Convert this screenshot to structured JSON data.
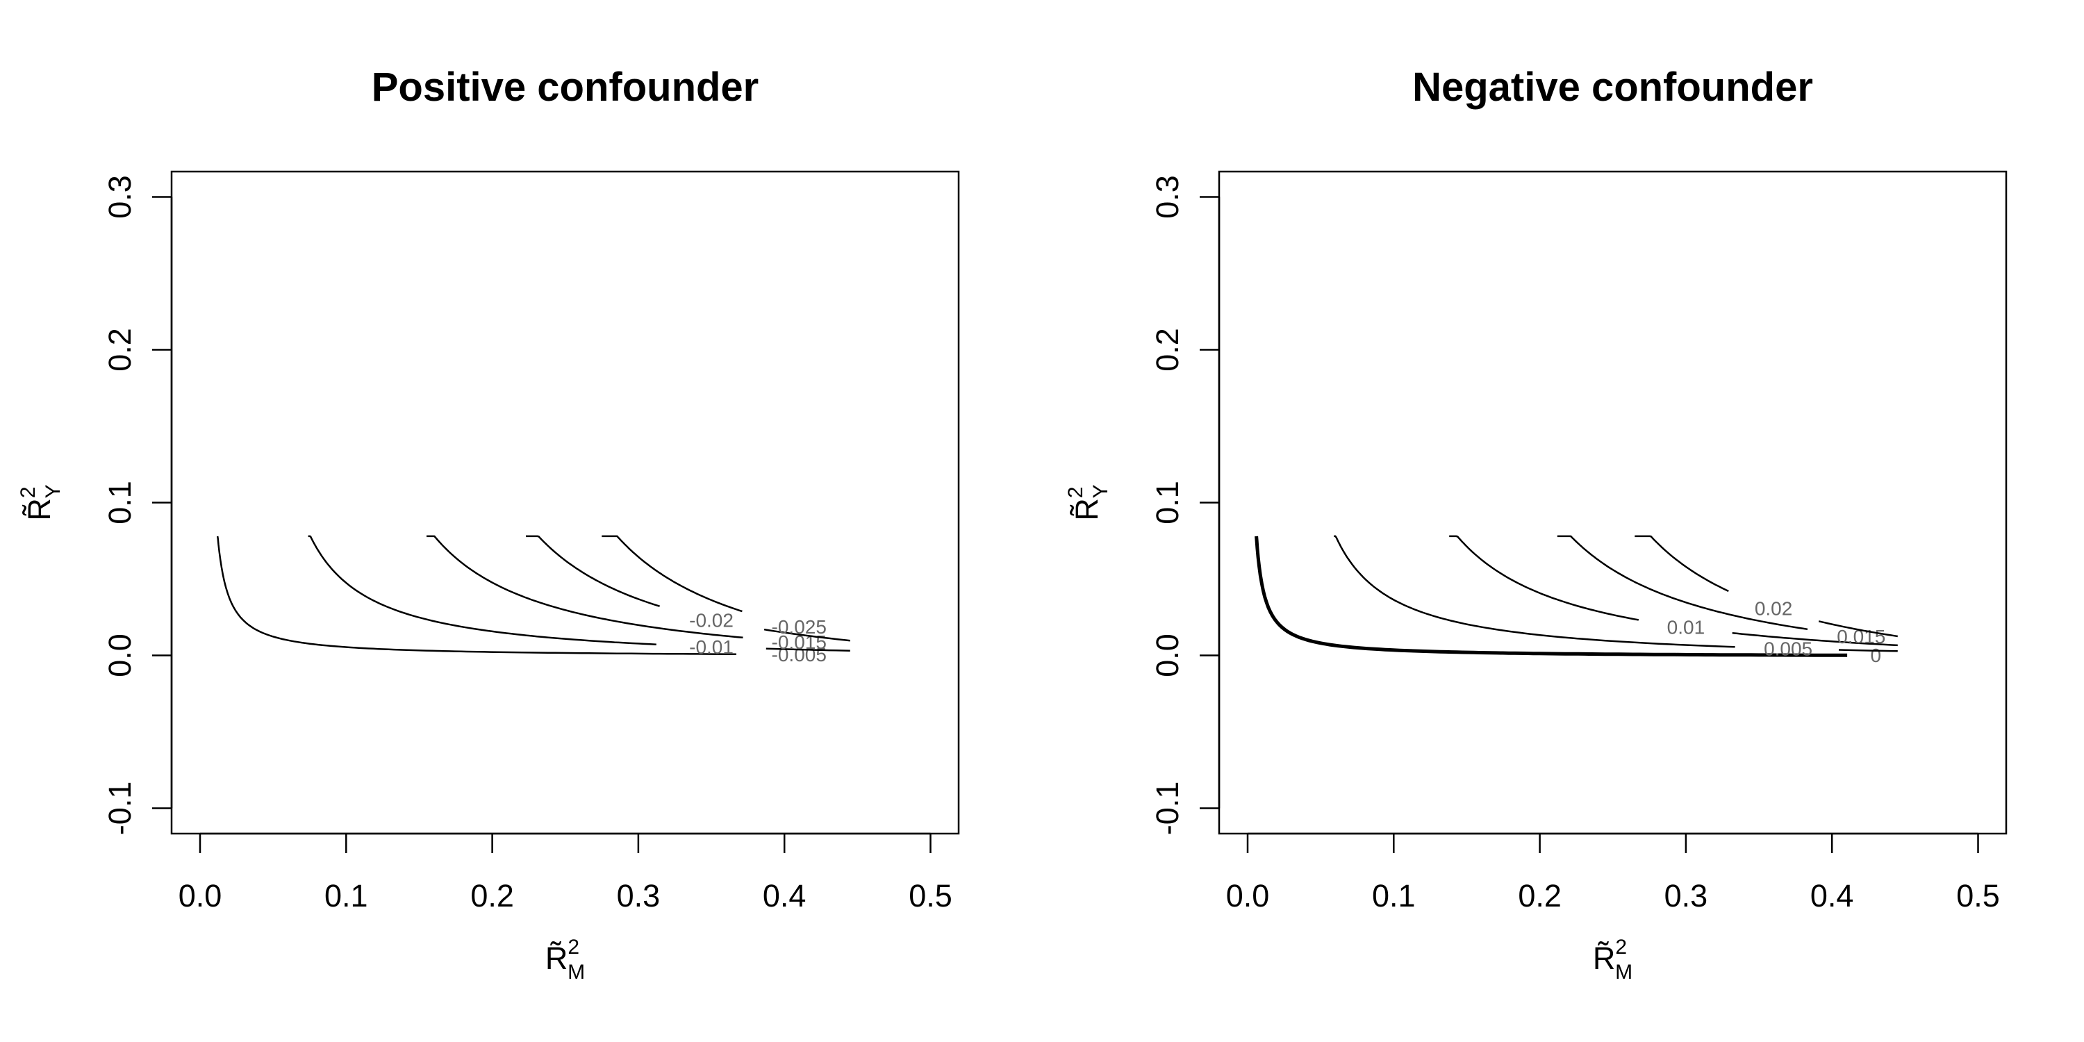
{
  "chart_data": [
    {
      "type": "line",
      "title": "Positive confounder",
      "xlabel": {
        "base": "R̃",
        "sup": "2",
        "sub": "M"
      },
      "ylabel": {
        "base": "R̃",
        "sup": "2",
        "sub": "Y"
      },
      "xlim": [
        0.0,
        0.5
      ],
      "ylim": [
        -0.1,
        0.3
      ],
      "xticks": [
        "0.0",
        "0.1",
        "0.2",
        "0.3",
        "0.4",
        "0.5"
      ],
      "yticks": [
        "-0.1",
        "0.0",
        "0.1",
        "0.2",
        "0.3"
      ],
      "grid": false,
      "series": [
        {
          "name": "-0.005",
          "bold": false,
          "x0": 0.012,
          "x1": 0.445,
          "k": 0.0006,
          "label_x": 0.41
        },
        {
          "name": "-0.01",
          "bold": false,
          "x0": 0.074,
          "x1": 0.445,
          "k": 0.0036,
          "label_x": 0.35
        },
        {
          "name": "-0.015",
          "bold": false,
          "x0": 0.155,
          "x1": 0.445,
          "k": 0.0078,
          "label_x": 0.41
        },
        {
          "name": "-0.02",
          "bold": false,
          "x0": 0.223,
          "x1": 0.445,
          "k": 0.0114,
          "label_x": 0.35
        },
        {
          "name": "-0.025",
          "bold": false,
          "x0": 0.275,
          "x1": 0.445,
          "k": 0.0147,
          "label_x": 0.41
        }
      ]
    },
    {
      "type": "line",
      "title": "Negative confounder",
      "xlabel": {
        "base": "R̃",
        "sup": "2",
        "sub": "M"
      },
      "ylabel": {
        "base": "R̃",
        "sup": "2",
        "sub": "Y"
      },
      "xlim": [
        0.0,
        0.5
      ],
      "ylim": [
        -0.1,
        0.3
      ],
      "xticks": [
        "0.0",
        "0.1",
        "0.2",
        "0.3",
        "0.4",
        "0.5"
      ],
      "yticks": [
        "-0.1",
        "0.0",
        "0.1",
        "0.2",
        "0.3"
      ],
      "grid": false,
      "series": [
        {
          "name": "0",
          "bold": true,
          "x0": 0.006,
          "x1": 0.445,
          "k": 0.00045,
          "label_x": 0.43
        },
        {
          "name": "0.005",
          "bold": false,
          "x0": 0.059,
          "x1": 0.445,
          "k": 0.0033,
          "label_x": 0.37
        },
        {
          "name": "0.01",
          "bold": false,
          "x0": 0.138,
          "x1": 0.445,
          "k": 0.0078,
          "label_x": 0.3
        },
        {
          "name": "0.015",
          "bold": false,
          "x0": 0.212,
          "x1": 0.445,
          "k": 0.0117,
          "label_x": 0.42
        },
        {
          "name": "0.02",
          "bold": false,
          "x0": 0.265,
          "x1": 0.445,
          "k": 0.0147,
          "label_x": 0.36
        }
      ]
    }
  ]
}
